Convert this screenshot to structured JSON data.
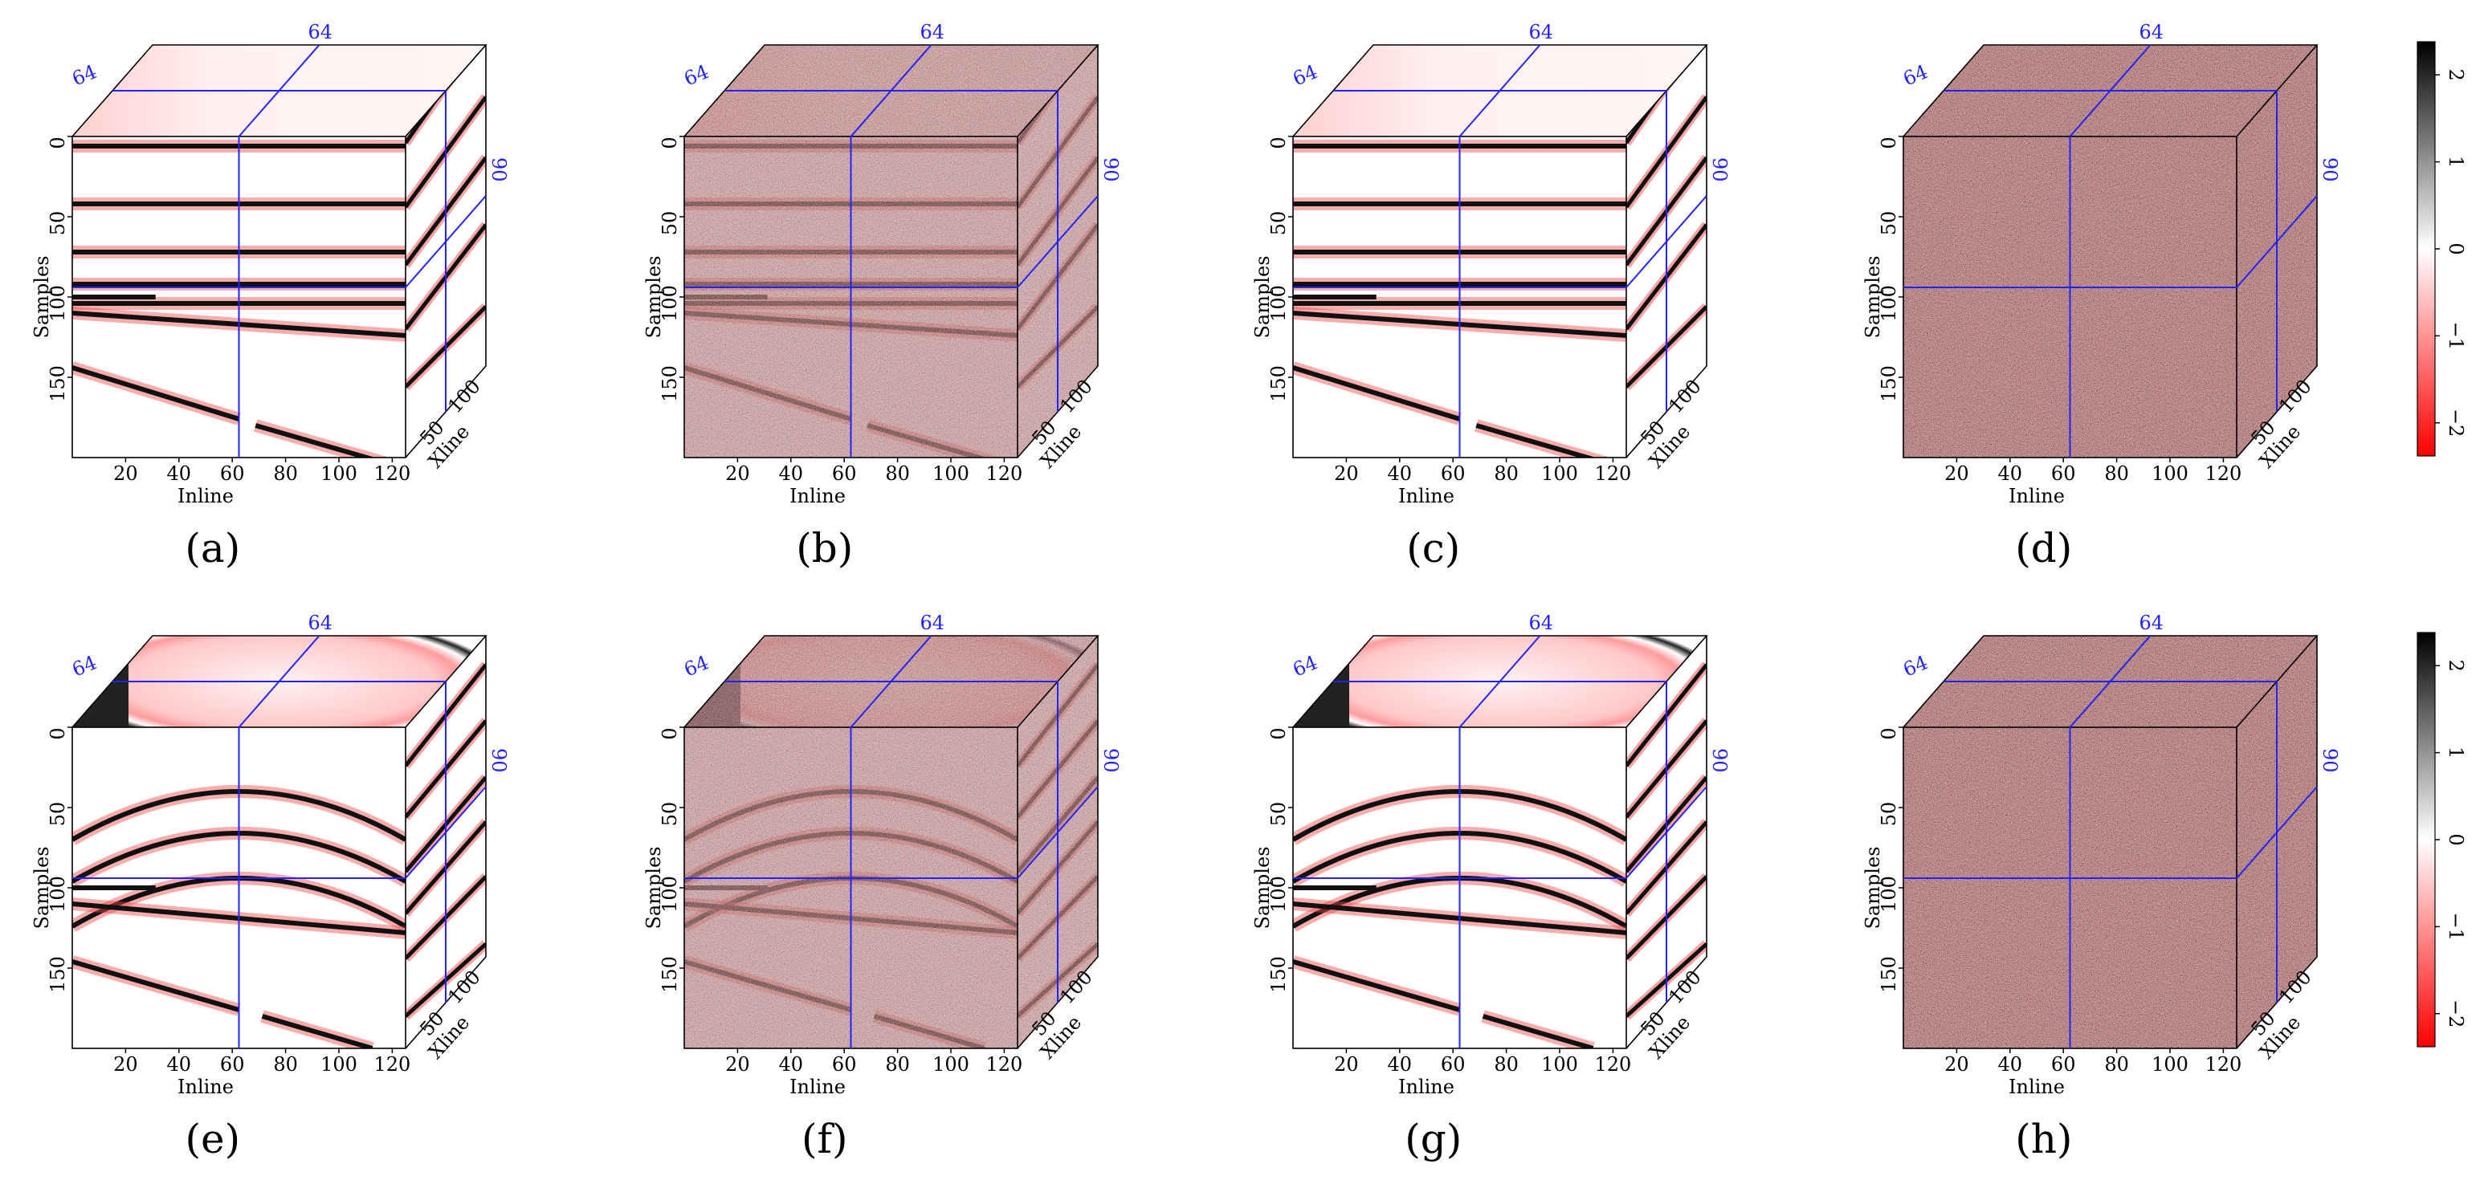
{
  "figure": {
    "panels": [
      {
        "label": "(a)",
        "top_pattern": "gradient",
        "front_pattern": "flat",
        "noise": "none"
      },
      {
        "label": "(b)",
        "top_pattern": "gradient",
        "front_pattern": "flat",
        "noise": "medium"
      },
      {
        "label": "(c)",
        "top_pattern": "gradient",
        "front_pattern": "flat",
        "noise": "none"
      },
      {
        "label": "(d)",
        "top_pattern": "noise",
        "front_pattern": "noise",
        "noise": "full"
      },
      {
        "label": "(e)",
        "top_pattern": "ellipse",
        "front_pattern": "curved",
        "noise": "none"
      },
      {
        "label": "(f)",
        "top_pattern": "ellipse",
        "front_pattern": "curved",
        "noise": "medium"
      },
      {
        "label": "(g)",
        "top_pattern": "ellipse",
        "front_pattern": "curved",
        "noise": "none"
      },
      {
        "label": "(h)",
        "top_pattern": "noise",
        "front_pattern": "noise",
        "noise": "full"
      }
    ],
    "axes": {
      "samples_label": "Samples",
      "inline_label": "Inline",
      "xline_label": "Xline",
      "samples_ticks": [
        "0",
        "50",
        "100",
        "150"
      ],
      "inline_ticks": [
        "20",
        "40",
        "60",
        "80",
        "100",
        "120"
      ],
      "xline_ticks": [
        "50",
        "100"
      ],
      "slice_inline": "64",
      "slice_xline": "64",
      "slice_samples": "90"
    },
    "colorbar": {
      "ticks": [
        "2",
        "1",
        "0",
        "−1",
        "−2"
      ],
      "colors": {
        "positive": "#000000",
        "zero": "#ffffff",
        "negative": "#ff0000"
      }
    },
    "colors": {
      "slice_line": "#2222ff",
      "event_dark": "#111111",
      "event_halo": "#f04848"
    }
  }
}
